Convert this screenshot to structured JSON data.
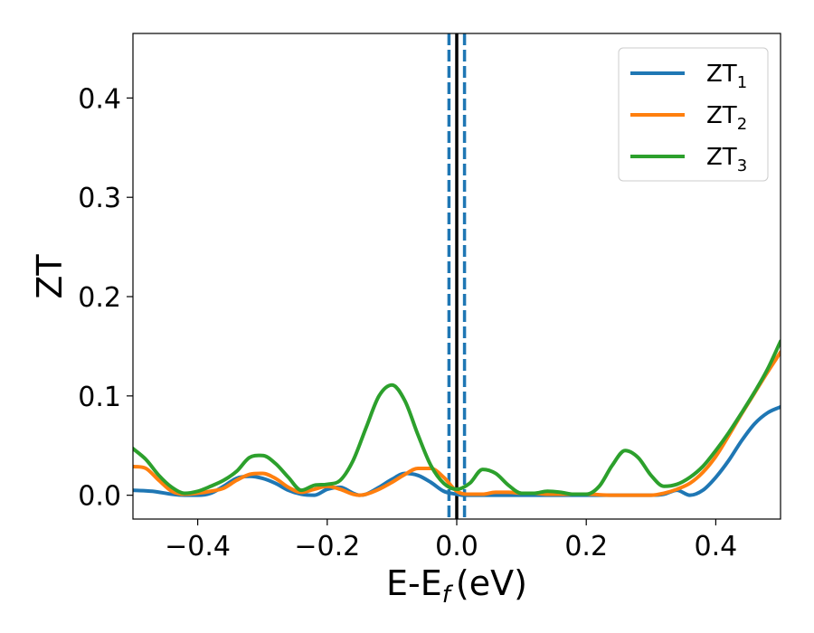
{
  "chart_data": {
    "type": "line",
    "xlabel_main": "E-E",
    "xlabel_sub": "f",
    "xlabel_unit": "(eV)",
    "ylabel": "ZT",
    "xlim": [
      -0.5,
      0.5
    ],
    "ylim": [
      -0.024,
      0.465
    ],
    "xticks": [
      -0.4,
      -0.2,
      0.0,
      0.2,
      0.4
    ],
    "xtick_labels": [
      "−0.4",
      "−0.2",
      "0.0",
      "0.2",
      "0.4"
    ],
    "yticks": [
      0.0,
      0.1,
      0.2,
      0.3,
      0.4
    ],
    "ytick_labels": [
      "0.0",
      "0.1",
      "0.2",
      "0.3",
      "0.4"
    ],
    "legend_position": "top-right",
    "vlines": [
      {
        "x": -0.012,
        "color": "#1f77b4",
        "style": "dashed"
      },
      {
        "x": 0.0,
        "color": "#000000",
        "style": "solid"
      },
      {
        "x": 0.012,
        "color": "#1f77b4",
        "style": "dashed"
      }
    ],
    "series": [
      {
        "name": "ZT",
        "sub": "1",
        "color": "#1f77b4",
        "x": [
          -0.5,
          -0.47,
          -0.44,
          -0.42,
          -0.4,
          -0.38,
          -0.36,
          -0.34,
          -0.32,
          -0.3,
          -0.28,
          -0.26,
          -0.24,
          -0.22,
          -0.2,
          -0.18,
          -0.16,
          -0.15,
          -0.14,
          -0.12,
          -0.1,
          -0.08,
          -0.06,
          -0.04,
          -0.02,
          0.0,
          0.01,
          0.02,
          0.04,
          0.06,
          0.08,
          0.1,
          0.12,
          0.14,
          0.16,
          0.18,
          0.2,
          0.22,
          0.24,
          0.26,
          0.28,
          0.3,
          0.32,
          0.34,
          0.36,
          0.38,
          0.4,
          0.42,
          0.44,
          0.46,
          0.48,
          0.5
        ],
        "y": [
          0.005,
          0.004,
          0.001,
          0.0,
          0.0,
          0.002,
          0.009,
          0.017,
          0.019,
          0.017,
          0.012,
          0.005,
          0.001,
          0.0,
          0.006,
          0.008,
          0.002,
          0.0,
          0.001,
          0.008,
          0.016,
          0.022,
          0.02,
          0.013,
          0.004,
          0.001,
          0.0,
          0.0,
          0.0,
          0.0,
          0.0,
          0.0,
          0.0,
          0.0,
          0.0,
          0.0,
          0.0,
          0.0,
          0.0,
          0.0,
          0.0,
          0.0,
          0.001,
          0.005,
          0.0,
          0.005,
          0.018,
          0.035,
          0.055,
          0.072,
          0.083,
          0.089
        ]
      },
      {
        "name": "ZT",
        "sub": "2",
        "color": "#ff7f0e",
        "x": [
          -0.5,
          -0.48,
          -0.46,
          -0.44,
          -0.42,
          -0.4,
          -0.38,
          -0.36,
          -0.34,
          -0.32,
          -0.3,
          -0.28,
          -0.26,
          -0.24,
          -0.22,
          -0.2,
          -0.18,
          -0.16,
          -0.15,
          -0.14,
          -0.12,
          -0.1,
          -0.08,
          -0.06,
          -0.04,
          -0.02,
          0.0,
          0.02,
          0.04,
          0.06,
          0.08,
          0.1,
          0.12,
          0.14,
          0.16,
          0.18,
          0.2,
          0.24,
          0.28,
          0.3,
          0.32,
          0.34,
          0.36,
          0.38,
          0.4,
          0.42,
          0.44,
          0.46,
          0.48,
          0.5
        ],
        "y": [
          0.029,
          0.027,
          0.015,
          0.004,
          0.001,
          0.002,
          0.004,
          0.007,
          0.015,
          0.021,
          0.022,
          0.017,
          0.008,
          0.003,
          0.006,
          0.009,
          0.006,
          0.001,
          0.0,
          0.001,
          0.006,
          0.013,
          0.021,
          0.027,
          0.027,
          0.018,
          0.004,
          0.001,
          0.001,
          0.003,
          0.003,
          0.002,
          0.002,
          0.001,
          0.001,
          0.001,
          0.001,
          0.0,
          0.0,
          0.0,
          0.002,
          0.006,
          0.012,
          0.023,
          0.039,
          0.06,
          0.082,
          0.103,
          0.124,
          0.144
        ]
      },
      {
        "name": "ZT",
        "sub": "3",
        "color": "#2ca02c",
        "x": [
          -0.5,
          -0.48,
          -0.46,
          -0.44,
          -0.42,
          -0.4,
          -0.38,
          -0.36,
          -0.34,
          -0.32,
          -0.3,
          -0.28,
          -0.26,
          -0.24,
          -0.22,
          -0.2,
          -0.18,
          -0.16,
          -0.14,
          -0.12,
          -0.1,
          -0.08,
          -0.06,
          -0.04,
          -0.02,
          0.0,
          0.02,
          0.04,
          0.06,
          0.08,
          0.1,
          0.12,
          0.14,
          0.16,
          0.18,
          0.2,
          0.22,
          0.24,
          0.26,
          0.28,
          0.3,
          0.32,
          0.34,
          0.36,
          0.38,
          0.4,
          0.42,
          0.44,
          0.46,
          0.48,
          0.5
        ],
        "y": [
          0.047,
          0.036,
          0.02,
          0.008,
          0.002,
          0.004,
          0.009,
          0.015,
          0.024,
          0.038,
          0.04,
          0.032,
          0.018,
          0.005,
          0.01,
          0.011,
          0.015,
          0.035,
          0.068,
          0.1,
          0.111,
          0.095,
          0.061,
          0.03,
          0.012,
          0.006,
          0.012,
          0.026,
          0.022,
          0.01,
          0.002,
          0.002,
          0.004,
          0.003,
          0.001,
          0.001,
          0.009,
          0.03,
          0.045,
          0.038,
          0.02,
          0.009,
          0.011,
          0.018,
          0.029,
          0.045,
          0.063,
          0.083,
          0.104,
          0.127,
          0.155
        ]
      }
    ]
  }
}
